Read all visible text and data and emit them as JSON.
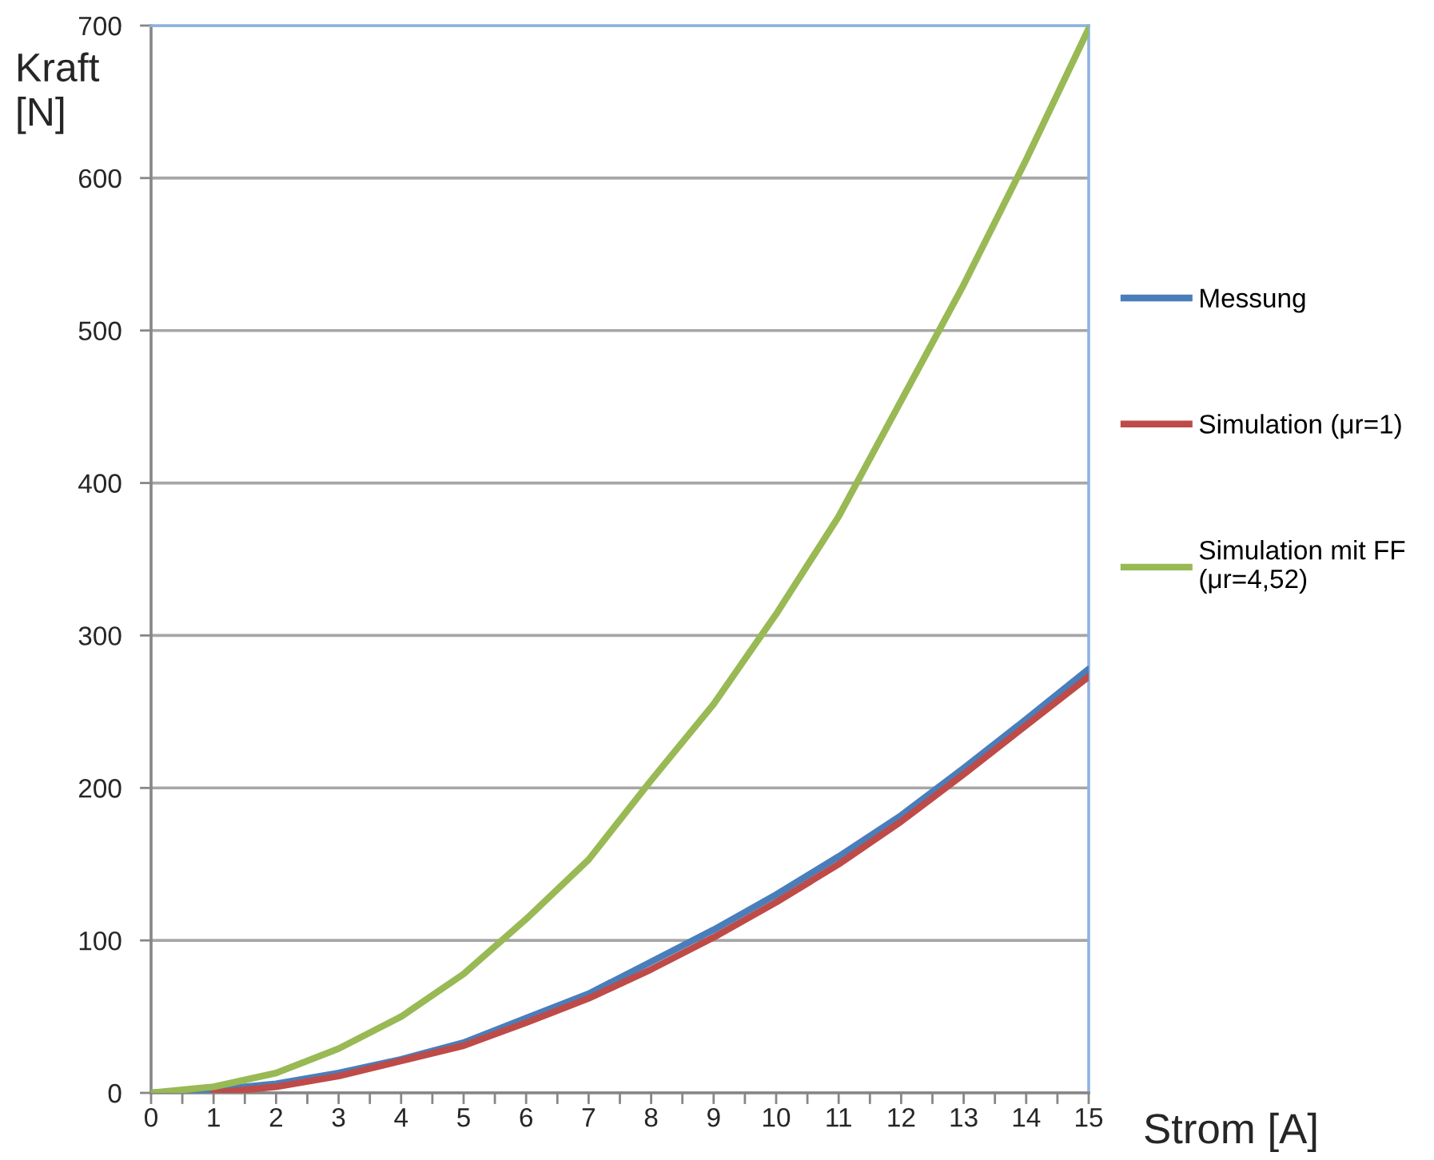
{
  "chart_data": {
    "type": "line",
    "xlabel": "Strom [A]",
    "ylabel": "Kraft\n[N]",
    "x": [
      0,
      1,
      2,
      3,
      4,
      5,
      6,
      7,
      8,
      9,
      10,
      11,
      12,
      13,
      14,
      15
    ],
    "series": [
      {
        "name": "Messung",
        "color": "#4a7ebb",
        "values": [
          0,
          2,
          6,
          13,
          22,
          33,
          49,
          65,
          86,
          107,
          130,
          155,
          182,
          213,
          245,
          278
        ]
      },
      {
        "name": "Simulation (μr=1)",
        "color": "#be4b48",
        "values": [
          null,
          0,
          4,
          11,
          21,
          31,
          46,
          62,
          81,
          102,
          125,
          150,
          178,
          209,
          241,
          273
        ]
      },
      {
        "name": "Simulation mit FF\n(μr=4,52)",
        "color": "#98b954",
        "values": [
          0,
          4,
          13,
          29,
          50,
          78,
          114,
          153,
          205,
          255,
          314,
          378,
          454,
          530,
          612,
          698
        ]
      }
    ],
    "xlim": [
      0,
      15
    ],
    "xticks": [
      0,
      {
        "value": 0.5,
        "label": null
      },
      1,
      {
        "value": 1.5,
        "label": null
      },
      2,
      {
        "value": 2.5,
        "label": null
      },
      3,
      {
        "value": 3.5,
        "label": null
      },
      4,
      {
        "value": 4.5,
        "label": null
      },
      5,
      {
        "value": 5.5,
        "label": null
      },
      6,
      {
        "value": 6.5,
        "label": null
      },
      7,
      {
        "value": 7.5,
        "label": null
      },
      8,
      {
        "value": 8.5,
        "label": null
      },
      9,
      {
        "value": 9.5,
        "label": null
      },
      10,
      {
        "value": 10.5,
        "label": null
      },
      11,
      {
        "value": 11.5,
        "label": null
      },
      12,
      {
        "value": 12.5,
        "label": null
      },
      13,
      {
        "value": 13.5,
        "label": null
      },
      14,
      {
        "value": 14.5,
        "label": null
      },
      15
    ],
    "ylim": [
      0,
      700
    ],
    "yticks": [
      0,
      100,
      200,
      300,
      400,
      500,
      600,
      700
    ],
    "grid": "y",
    "legend": "right",
    "marker": "none",
    "line_style": "solid"
  }
}
